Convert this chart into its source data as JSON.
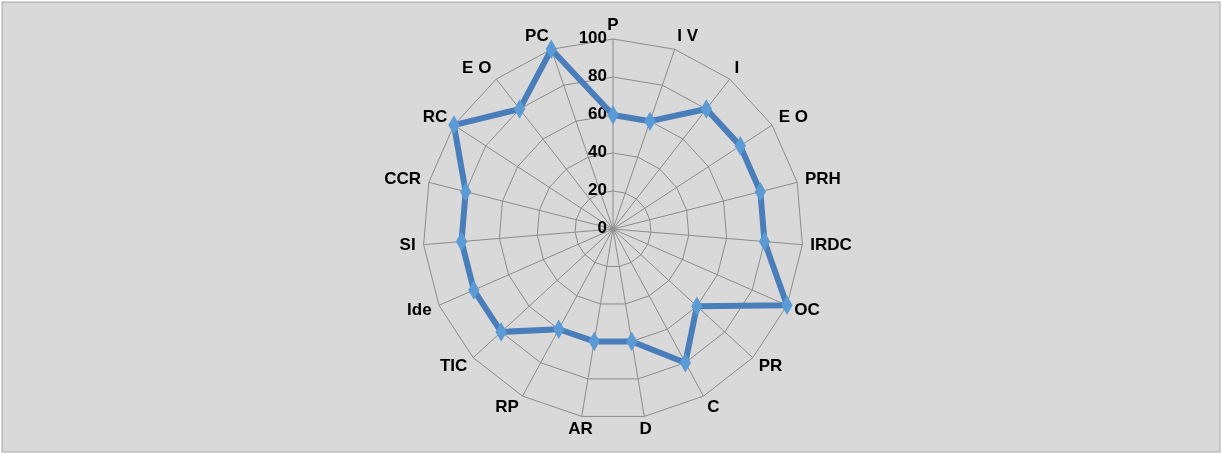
{
  "chart_data": {
    "type": "radar",
    "categories": [
      "P",
      "I V",
      "I",
      "E O",
      "PRH",
      "IRDC",
      "OC",
      "PR",
      "C",
      "D",
      "AR",
      "RP",
      "TIC",
      "Ide",
      "SI",
      "CCR",
      "RC",
      "E O",
      "PC"
    ],
    "series": [
      {
        "color": "#4a7ebb",
        "values": [
          60,
          60,
          80,
          80,
          80,
          80,
          100,
          60,
          80,
          60,
          60,
          60,
          80,
          80,
          80,
          80,
          100,
          80,
          100
        ]
      }
    ],
    "ylim": [
      0,
      100
    ],
    "yticks": [
      0,
      20,
      40,
      60,
      80,
      100
    ],
    "grid": true,
    "marker": "diamond",
    "line_style": "solid"
  }
}
